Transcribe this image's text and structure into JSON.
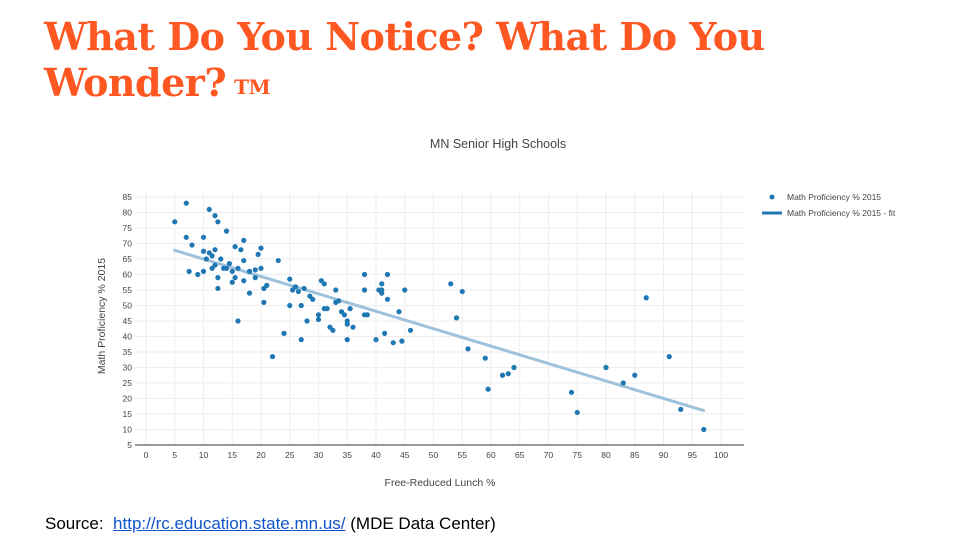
{
  "slide": {
    "title": "What Do You Notice?  What Do You Wonder?",
    "trademark": "TM",
    "source_label": "Source:",
    "source_link": "http://rc.education.state.mn.us/",
    "source_note": "(MDE Data Center)"
  },
  "colors": {
    "title": "#ff5722",
    "marker": "#1f77b4",
    "fit_line": "#9ec2dc",
    "grid": "#eeeeee",
    "link": "#1155cc"
  },
  "chart_data": {
    "type": "scatter",
    "title": "MN Senior High Schools",
    "xlabel": "Free-Reduced Lunch %",
    "ylabel": "Math Proficiency % 2015",
    "xlim": [
      0,
      100
    ],
    "ylim": [
      5,
      85
    ],
    "xticks": [
      0,
      5,
      10,
      15,
      20,
      25,
      30,
      35,
      40,
      45,
      50,
      55,
      60,
      65,
      70,
      75,
      80,
      85,
      90,
      95,
      100
    ],
    "yticks": [
      5,
      10,
      15,
      20,
      25,
      30,
      35,
      40,
      45,
      50,
      55,
      60,
      65,
      70,
      75,
      80,
      85
    ],
    "grid": true,
    "legend_position": "top-right",
    "series": [
      {
        "name": "Math Proficiency % 2015",
        "kind": "markers",
        "points": [
          [
            5,
            77
          ],
          [
            7,
            83
          ],
          [
            7,
            72
          ],
          [
            7.5,
            61
          ],
          [
            8,
            69.5
          ],
          [
            9,
            60
          ],
          [
            10,
            72
          ],
          [
            10,
            61
          ],
          [
            10,
            67.5
          ],
          [
            10.5,
            65
          ],
          [
            11,
            81
          ],
          [
            11,
            67
          ],
          [
            11.5,
            62
          ],
          [
            11.5,
            66
          ],
          [
            12,
            79
          ],
          [
            12,
            68
          ],
          [
            12,
            63
          ],
          [
            12.5,
            77
          ],
          [
            12.5,
            59
          ],
          [
            12.5,
            55.5
          ],
          [
            13,
            65
          ],
          [
            13.5,
            62
          ],
          [
            14,
            74
          ],
          [
            14,
            62
          ],
          [
            14.5,
            63.5
          ],
          [
            15,
            57.5
          ],
          [
            15,
            61
          ],
          [
            15.5,
            59
          ],
          [
            15.5,
            69
          ],
          [
            16,
            45
          ],
          [
            16,
            62
          ],
          [
            16.5,
            68
          ],
          [
            17,
            71
          ],
          [
            17,
            64.5
          ],
          [
            17,
            58
          ],
          [
            18,
            61
          ],
          [
            18,
            54
          ],
          [
            19,
            59
          ],
          [
            19,
            61.5
          ],
          [
            19.5,
            66.5
          ],
          [
            20,
            68.5
          ],
          [
            20,
            62
          ],
          [
            20.5,
            55.5
          ],
          [
            20.5,
            51
          ],
          [
            21,
            56.5
          ],
          [
            22,
            33.5
          ],
          [
            23,
            64.5
          ],
          [
            24,
            41
          ],
          [
            25,
            58.5
          ],
          [
            25,
            50
          ],
          [
            25.5,
            55
          ],
          [
            26,
            56
          ],
          [
            26.5,
            54.5
          ],
          [
            27,
            50
          ],
          [
            27,
            39
          ],
          [
            27.5,
            55.5
          ],
          [
            28,
            45
          ],
          [
            28.5,
            53
          ],
          [
            29,
            52
          ],
          [
            30,
            47
          ],
          [
            30,
            45.5
          ],
          [
            30.5,
            58
          ],
          [
            31,
            57
          ],
          [
            31,
            49
          ],
          [
            31.5,
            49
          ],
          [
            32,
            43
          ],
          [
            32.5,
            42
          ],
          [
            33,
            55
          ],
          [
            33,
            51
          ],
          [
            33.5,
            51.5
          ],
          [
            34,
            48
          ],
          [
            34.5,
            47
          ],
          [
            35,
            44
          ],
          [
            35,
            45
          ],
          [
            35,
            39
          ],
          [
            35.5,
            49
          ],
          [
            36,
            43
          ],
          [
            38,
            60
          ],
          [
            38,
            55
          ],
          [
            38,
            47
          ],
          [
            38.5,
            47
          ],
          [
            40,
            39
          ],
          [
            40.5,
            55
          ],
          [
            41,
            55
          ],
          [
            41,
            54
          ],
          [
            41,
            57
          ],
          [
            41.5,
            41
          ],
          [
            42,
            60
          ],
          [
            42,
            52
          ],
          [
            43,
            38
          ],
          [
            44,
            48
          ],
          [
            44.5,
            38.5
          ],
          [
            45,
            55
          ],
          [
            46,
            42
          ],
          [
            53,
            57
          ],
          [
            54,
            46
          ],
          [
            55,
            54.5
          ],
          [
            56,
            36
          ],
          [
            59,
            33
          ],
          [
            59.5,
            23
          ],
          [
            62,
            27.5
          ],
          [
            63,
            28
          ],
          [
            64,
            30
          ],
          [
            74,
            22
          ],
          [
            75,
            15.5
          ],
          [
            80,
            30
          ],
          [
            83,
            25
          ],
          [
            85,
            27.5
          ],
          [
            87,
            52.5
          ],
          [
            91,
            33.5
          ],
          [
            93,
            16.5
          ],
          [
            97,
            10
          ]
        ]
      },
      {
        "name": "Math Proficiency % 2015 - fit",
        "kind": "line",
        "points": [
          [
            5,
            67.8
          ],
          [
            97,
            16.1
          ]
        ]
      }
    ]
  }
}
